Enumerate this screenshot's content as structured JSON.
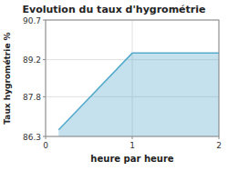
{
  "chart_data": {
    "type": "area",
    "title": "Evolution du taux d'hygrométrie",
    "xlabel": "heure par heure",
    "ylabel": "Taux hygrométrie %",
    "x": [
      0.15,
      1.0,
      2.0
    ],
    "values": [
      86.55,
      89.45,
      89.45
    ],
    "color": "#55aacc",
    "xlim": [
      0,
      2
    ],
    "ylim": [
      86.3,
      90.7
    ],
    "xticks": [
      0,
      1,
      2
    ],
    "yticks": [
      86.3,
      87.8,
      89.2,
      90.7
    ],
    "grid": true
  }
}
